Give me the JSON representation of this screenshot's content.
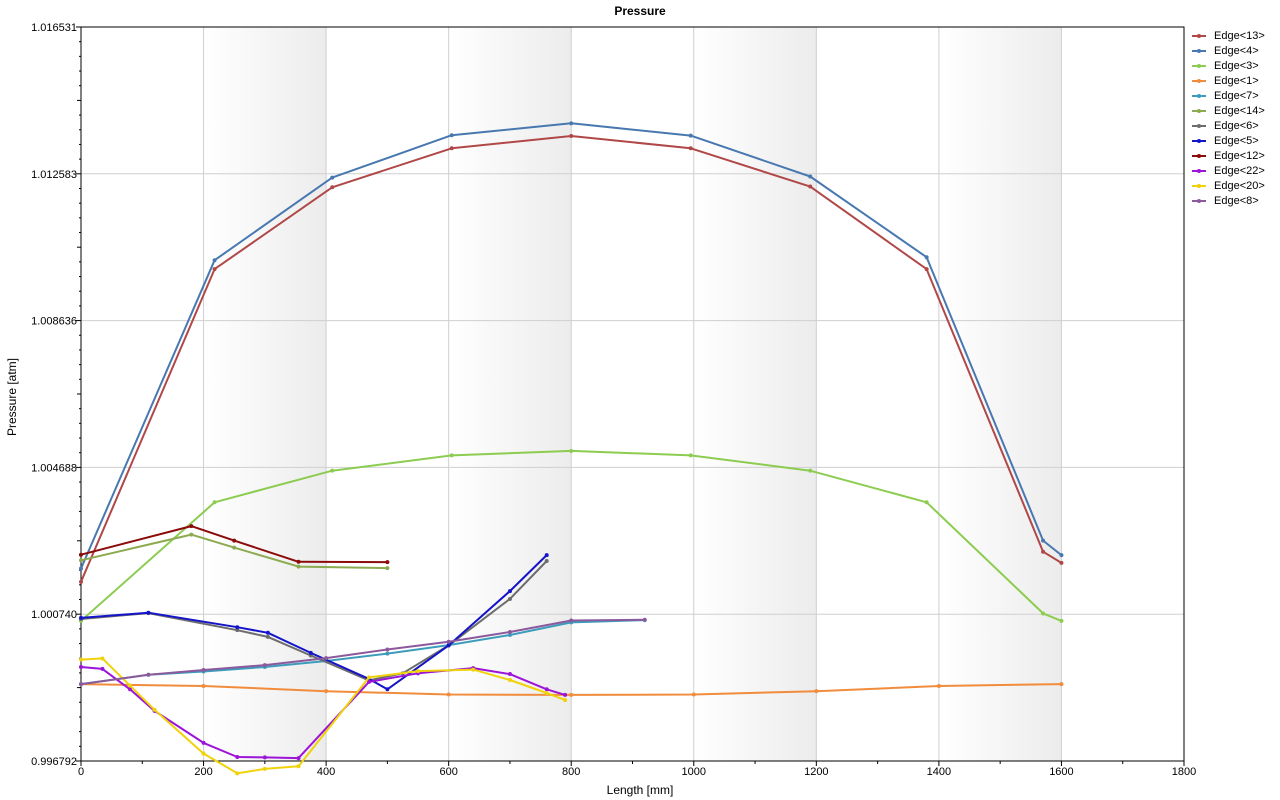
{
  "chart_data": {
    "type": "line",
    "title": "Pressure",
    "xlabel": "Length [mm]",
    "ylabel": "Pressure [atm]",
    "xlim": [
      0,
      1800
    ],
    "ylim": [
      0.996792,
      1.016531
    ],
    "x_ticks": [
      "0",
      "200",
      "400",
      "600",
      "800",
      "1000",
      "1200",
      "1400",
      "1600",
      "1800"
    ],
    "y_ticks": [
      "0.996792",
      "1.000740",
      "1.004688",
      "1.008636",
      "1.012583",
      "1.016531"
    ],
    "grid": true,
    "legend_position": "right",
    "series": [
      {
        "name": "Edge<13>",
        "color": "#b04848",
        "x": [
          0,
          218,
          410,
          605,
          800,
          995,
          1190,
          1380,
          1570,
          1600
        ],
        "y": [
          1.00161,
          1.01002,
          1.01222,
          1.01327,
          1.0136,
          1.01327,
          1.01224,
          1.01002,
          1.00242,
          1.00212
        ]
      },
      {
        "name": "Edge<4>",
        "color": "#4878b0",
        "x": [
          0,
          218,
          410,
          605,
          800,
          995,
          1190,
          1380,
          1570,
          1600
        ],
        "y": [
          1.00197,
          1.01026,
          1.01248,
          1.01362,
          1.01394,
          1.01361,
          1.01251,
          1.01034,
          1.00272,
          1.00233
        ]
      },
      {
        "name": "Edge<3>",
        "color": "#8ccc50",
        "x": [
          0,
          218,
          410,
          605,
          800,
          995,
          1190,
          1380,
          1570,
          1600
        ],
        "y": [
          1.00056,
          1.00375,
          1.0046,
          1.00501,
          1.00513,
          1.00501,
          1.0046,
          1.00375,
          1.00076,
          1.00056
        ]
      },
      {
        "name": "Edge<1>",
        "color": "#f08c3c",
        "x": [
          0,
          200,
          400,
          600,
          800,
          1000,
          1200,
          1400,
          1600
        ],
        "y": [
          0.99886,
          0.99881,
          0.99867,
          0.99858,
          0.99857,
          0.99858,
          0.99867,
          0.99881,
          0.99886
        ]
      },
      {
        "name": "Edge<7>",
        "color": "#3c9cbc",
        "x": [
          0,
          110,
          200,
          300,
          400,
          500,
          600,
          700,
          800,
          920
        ],
        "y": [
          0.99886,
          0.99911,
          0.9992,
          0.99932,
          0.99948,
          0.99968,
          0.99991,
          1.00018,
          1.00052,
          1.00058
        ]
      },
      {
        "name": "Edge<14>",
        "color": "#8caa50",
        "x": [
          0,
          180,
          250,
          355,
          500
        ],
        "y": [
          1.00219,
          1.00288,
          1.00253,
          1.00202,
          1.00198
        ]
      },
      {
        "name": "Edge<6>",
        "color": "#6c6c6c",
        "x": [
          0,
          110,
          255,
          305,
          375,
          470,
          525,
          600,
          700,
          760
        ],
        "y": [
          1.00061,
          1.00077,
          1.00031,
          1.00013,
          0.99963,
          0.99896,
          0.99915,
          0.9999,
          1.00115,
          1.00217
        ]
      },
      {
        "name": "Edge<5>",
        "color": "#1414c8",
        "x": [
          0,
          110,
          255,
          305,
          375,
          470,
          500,
          600,
          700,
          760
        ],
        "y": [
          1.00064,
          1.00078,
          1.00039,
          1.00024,
          0.9997,
          0.999,
          0.99872,
          0.9999,
          1.00136,
          1.00233
        ]
      },
      {
        "name": "Edge<12>",
        "color": "#8c0a0a",
        "x": [
          0,
          180,
          250,
          355,
          500
        ],
        "y": [
          1.00234,
          1.00311,
          1.00272,
          1.00215,
          1.00214
        ]
      },
      {
        "name": "Edge<22>",
        "color": "#9c14d8",
        "x": [
          0,
          35,
          80,
          120,
          200,
          255,
          300,
          355,
          470,
          550,
          640,
          700,
          760,
          790
        ],
        "y": [
          0.99932,
          0.99927,
          0.99872,
          0.99814,
          0.99728,
          0.9969,
          0.99689,
          0.99687,
          0.99892,
          0.99915,
          0.99929,
          0.99913,
          0.99872,
          0.99857
        ]
      },
      {
        "name": "Edge<20>",
        "color": "#f0d20a",
        "x": [
          0,
          35,
          80,
          120,
          200,
          255,
          300,
          355,
          470,
          550,
          640,
          700,
          760,
          790
        ],
        "y": [
          0.99952,
          0.99955,
          0.99882,
          0.99817,
          0.99699,
          0.99646,
          0.99658,
          0.99665,
          0.99904,
          0.99921,
          0.99925,
          0.99897,
          0.99862,
          0.99843
        ]
      },
      {
        "name": "Edge<8>",
        "color": "#8c5a9c",
        "x": [
          0,
          110,
          200,
          300,
          400,
          500,
          600,
          700,
          800,
          920
        ],
        "y": [
          0.99886,
          0.99911,
          0.99924,
          0.99937,
          0.99956,
          0.99979,
          1.0,
          1.00026,
          1.00057,
          1.00059
        ]
      }
    ]
  }
}
